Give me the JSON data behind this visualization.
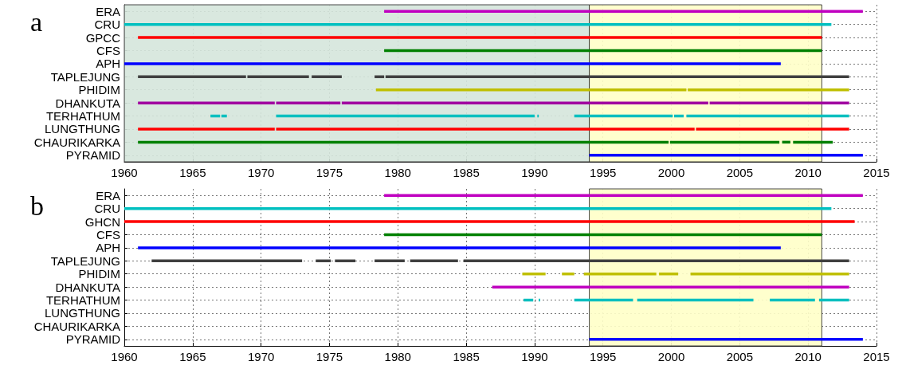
{
  "chart_data": [
    {
      "type": "bar",
      "orientation": "horizontal",
      "annotations": [
        "a"
      ],
      "categories": [
        "ERA",
        "CRU",
        "GPCC",
        "CFS",
        "APH",
        "TAPLEJUNG",
        "PHIDIM",
        "DHANKUTA",
        "TERHATHUM",
        "LUNGTHUNG",
        "CHAURIKARKA",
        "PYRAMID"
      ],
      "xlim": [
        1960,
        2015
      ],
      "xticks": [
        1960,
        1965,
        1970,
        1975,
        1980,
        1985,
        1990,
        1995,
        2000,
        2005,
        2010,
        2015
      ],
      "grid": true,
      "bands": [
        {
          "axis": "x",
          "from": 1960,
          "to": 1994,
          "color": "#d5e5dc"
        },
        {
          "axis": "x",
          "from": 1994,
          "to": 2011,
          "color": "#ffffc8"
        }
      ],
      "series": [
        {
          "colors": [
            "#c000c0",
            "#00c0c0",
            "#ff0000",
            "#008000",
            "#0000ff",
            "#404040",
            "#bfbf00",
            "#a000a0",
            "#00bfbf",
            "#ff0000",
            "#008000",
            "#0000ff"
          ],
          "base": [
            1979,
            1960,
            1961,
            1979,
            1960,
            1961,
            1978.4,
            1961,
            1966.3,
            1961,
            1961,
            1994
          ],
          "values": [
            35,
            51.7,
            50,
            32,
            48,
            7.9,
            22.7,
            10,
            0.7,
            10,
            38.8,
            20
          ]
        },
        {
          "colors": [
            null,
            null,
            null,
            null,
            null,
            "#404040",
            "#bfbf00",
            "#a000a0",
            "#00bfbf",
            "#ff0000",
            "#008000",
            null
          ],
          "base": [
            null,
            null,
            null,
            null,
            null,
            1969,
            2001.2,
            1971.1,
            1967.1,
            1971.1,
            1999.9,
            null
          ],
          "values": [
            null,
            null,
            null,
            null,
            null,
            4.5,
            11.8,
            4.7,
            0.4,
            30.6,
            8,
            null
          ]
        },
        {
          "colors": [
            null,
            null,
            null,
            null,
            null,
            "#404040",
            null,
            "#a000a0",
            "#00bfbf",
            "#ff0000",
            "#008000",
            null
          ],
          "base": [
            null,
            null,
            null,
            null,
            null,
            1973.7,
            null,
            1975.9,
            1971.1,
            2001.8,
            2008.1,
            null
          ],
          "values": [
            null,
            null,
            null,
            null,
            null,
            2.2,
            null,
            26.8,
            18.9,
            11.2,
            0.6,
            null
          ]
        },
        {
          "colors": [
            null,
            null,
            null,
            null,
            null,
            "#404040",
            null,
            "#a000a0",
            "#00bfbf",
            null,
            "#008000",
            null
          ],
          "base": [
            null,
            null,
            null,
            null,
            null,
            1978.3,
            null,
            2002.8,
            1990.2,
            null,
            2008.9,
            null
          ],
          "values": [
            null,
            null,
            null,
            null,
            null,
            0.7,
            null,
            10.2,
            0.1,
            null,
            2.9,
            null
          ]
        },
        {
          "colors": [
            null,
            null,
            null,
            null,
            null,
            "#404040",
            null,
            null,
            "#00bfbf",
            null,
            null,
            null
          ],
          "base": [
            null,
            null,
            null,
            null,
            null,
            1979.1,
            null,
            null,
            1992.9,
            null,
            null,
            null
          ],
          "values": [
            null,
            null,
            null,
            null,
            null,
            33.9,
            null,
            null,
            7.2,
            null,
            null,
            null
          ]
        },
        {
          "colors": [
            null,
            null,
            null,
            null,
            null,
            null,
            null,
            null,
            "#00bfbf",
            null,
            null,
            null
          ],
          "base": [
            null,
            null,
            null,
            null,
            null,
            null,
            null,
            null,
            2000.2,
            null,
            null,
            null
          ],
          "values": [
            null,
            null,
            null,
            null,
            null,
            null,
            null,
            null,
            0.7,
            null,
            null,
            null
          ]
        },
        {
          "colors": [
            null,
            null,
            null,
            null,
            null,
            null,
            null,
            null,
            "#00bfbf",
            null,
            null,
            null
          ],
          "base": [
            null,
            null,
            null,
            null,
            null,
            null,
            null,
            null,
            2001.1,
            null,
            null,
            null
          ],
          "values": [
            null,
            null,
            null,
            null,
            null,
            null,
            null,
            null,
            11.9,
            null,
            null,
            null
          ]
        }
      ]
    },
    {
      "type": "bar",
      "orientation": "horizontal",
      "annotations": [
        "b"
      ],
      "categories": [
        "ERA",
        "CRU",
        "GHCN",
        "CFS",
        "APH",
        "TAPLEJUNG",
        "PHIDIM",
        "DHANKUTA",
        "TERHATHUM",
        "LUNGTHUNG",
        "CHAURIKARKA",
        "PYRAMID"
      ],
      "xlim": [
        1960,
        2015
      ],
      "xticks": [
        1960,
        1965,
        1970,
        1975,
        1980,
        1985,
        1990,
        1995,
        2000,
        2005,
        2010,
        2015
      ],
      "grid": true,
      "bands": [
        {
          "axis": "x",
          "from": 1994,
          "to": 2011,
          "color": "#ffffc8"
        }
      ],
      "series": [
        {
          "colors": [
            "#c000c0",
            "#00c0c0",
            "#ff0000",
            "#008000",
            "#0000ff",
            "#404040",
            "#bfbf00",
            "#c000c0",
            "#00bfbf",
            null,
            null,
            "#0000ff"
          ],
          "base": [
            1979,
            1960,
            1960,
            1979,
            1961,
            1962,
            1989.1,
            1986.9,
            1989.2,
            null,
            null,
            1994
          ],
          "values": [
            35,
            51.7,
            53.4,
            32,
            47,
            11,
            1.7,
            26.1,
            0.7,
            null,
            null,
            20
          ]
        },
        {
          "colors": [
            null,
            null,
            null,
            null,
            null,
            "#404040",
            "#bfbf00",
            null,
            "#00bfbf",
            null,
            null,
            null
          ],
          "base": [
            null,
            null,
            null,
            null,
            null,
            1974,
            1992,
            null,
            1990.3,
            null,
            null,
            null
          ],
          "values": [
            null,
            null,
            null,
            null,
            null,
            1.1,
            0.9,
            null,
            0.1,
            null,
            null,
            null
          ]
        },
        {
          "colors": [
            null,
            null,
            null,
            null,
            null,
            "#404040",
            "#bfbf00",
            null,
            "#00bfbf",
            null,
            null,
            null
          ],
          "base": [
            null,
            null,
            null,
            null,
            null,
            1975.4,
            1993.6,
            null,
            1992.9,
            null,
            null,
            null
          ],
          "values": [
            null,
            null,
            null,
            null,
            null,
            1.5,
            5.3,
            null,
            4.3,
            null,
            null,
            null
          ]
        },
        {
          "colors": [
            null,
            null,
            null,
            null,
            null,
            "#404040",
            "#bfbf00",
            null,
            "#00bfbf",
            null,
            null,
            null
          ],
          "base": [
            null,
            null,
            null,
            null,
            null,
            1978.3,
            1999.1,
            null,
            1997.5,
            null,
            null,
            null
          ],
          "values": [
            null,
            null,
            null,
            null,
            null,
            2.2,
            1.4,
            null,
            8.5,
            null,
            null,
            null
          ]
        },
        {
          "colors": [
            null,
            null,
            null,
            null,
            null,
            "#404040",
            "#bfbf00",
            null,
            "#00bfbf",
            null,
            null,
            null
          ],
          "base": [
            null,
            null,
            null,
            null,
            null,
            1980.9,
            2001.4,
            null,
            2007.2,
            null,
            null,
            null
          ],
          "values": [
            null,
            null,
            null,
            null,
            null,
            3.5,
            11.6,
            null,
            3.3,
            null,
            null,
            null
          ]
        },
        {
          "colors": [
            null,
            null,
            null,
            null,
            null,
            "#404040",
            null,
            null,
            "#00bfbf",
            null,
            null,
            null
          ],
          "base": [
            null,
            null,
            null,
            null,
            null,
            1984.8,
            null,
            null,
            2010.8,
            null,
            null,
            null
          ],
          "values": [
            null,
            null,
            null,
            null,
            null,
            28.2,
            null,
            null,
            2.2,
            null,
            null,
            null
          ]
        }
      ]
    }
  ]
}
